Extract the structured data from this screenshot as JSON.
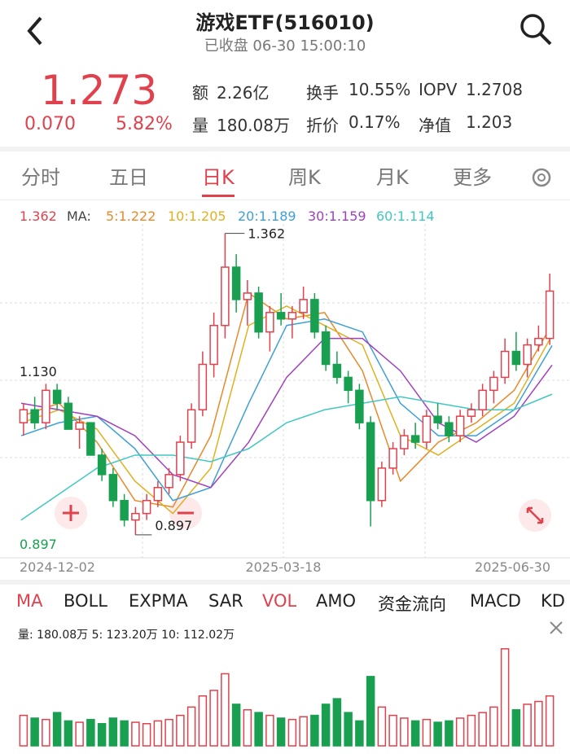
{
  "header": {
    "title": "游戏ETF(516010)",
    "status": "已收盘 06-30 15:00:10"
  },
  "quote": {
    "price": "1.273",
    "change": "0.070",
    "percent": "5.82%",
    "stats": [
      [
        "额",
        "2.26亿"
      ],
      [
        "换手",
        "10.55%"
      ],
      [
        "IOPV",
        "1.2708"
      ],
      [
        "量",
        "180.08万"
      ],
      [
        "折价",
        "0.17%"
      ],
      [
        "净值",
        "1.203"
      ]
    ]
  },
  "tabs": [
    "分时",
    "五日",
    "日K",
    "周K",
    "月K",
    "更多"
  ],
  "ma_legend": [
    "1.362",
    "MA:",
    "5:1.222",
    "10:1.205",
    "20:1.189",
    "30:1.159",
    "60:1.114"
  ],
  "indicators": [
    "MA",
    "BOLL",
    "EXPMA",
    "SAR",
    "VOL",
    "AMO",
    "资金流向",
    "MACD",
    "KD"
  ],
  "volume_legend": "量:  180.08万  5:  123.20万  10:  112.02万",
  "chart_data": {
    "type": "candlestick",
    "x_labels": [
      "2024-12-02",
      "2025-03-18",
      "2025-06-30"
    ],
    "annotations": {
      "high": "1.362",
      "left_high": "1.130",
      "low": "0.897",
      "axis_low": "0.897"
    },
    "ylim": [
      0.868,
      1.398
    ],
    "up_color": "#e0424d",
    "down_color": "#18a050",
    "ohlc": [
      [
        1.07,
        1.1,
        1.05,
        1.09
      ],
      [
        1.09,
        1.11,
        1.06,
        1.07
      ],
      [
        1.07,
        1.13,
        1.06,
        1.12
      ],
      [
        1.12,
        1.13,
        1.09,
        1.1
      ],
      [
        1.1,
        1.11,
        1.06,
        1.06
      ],
      [
        1.06,
        1.08,
        1.03,
        1.07
      ],
      [
        1.07,
        1.07,
        1.02,
        1.02
      ],
      [
        1.02,
        1.03,
        0.98,
        0.99
      ],
      [
        0.99,
        1.0,
        0.94,
        0.95
      ],
      [
        0.95,
        0.96,
        0.91,
        0.92
      ],
      [
        0.92,
        0.94,
        0.897,
        0.93
      ],
      [
        0.93,
        0.96,
        0.92,
        0.95
      ],
      [
        0.95,
        0.98,
        0.94,
        0.97
      ],
      [
        0.97,
        1.0,
        0.96,
        0.99
      ],
      [
        0.99,
        1.05,
        0.98,
        1.04
      ],
      [
        1.04,
        1.1,
        1.03,
        1.09
      ],
      [
        1.09,
        1.18,
        1.08,
        1.16
      ],
      [
        1.16,
        1.24,
        1.14,
        1.22
      ],
      [
        1.22,
        1.362,
        1.2,
        1.31
      ],
      [
        1.31,
        1.33,
        1.24,
        1.26
      ],
      [
        1.26,
        1.29,
        1.22,
        1.27
      ],
      [
        1.27,
        1.28,
        1.2,
        1.21
      ],
      [
        1.21,
        1.25,
        1.18,
        1.24
      ],
      [
        1.24,
        1.27,
        1.22,
        1.23
      ],
      [
        1.23,
        1.25,
        1.2,
        1.24
      ],
      [
        1.24,
        1.28,
        1.23,
        1.26
      ],
      [
        1.26,
        1.27,
        1.2,
        1.21
      ],
      [
        1.21,
        1.22,
        1.15,
        1.16
      ],
      [
        1.16,
        1.18,
        1.13,
        1.14
      ],
      [
        1.14,
        1.15,
        1.1,
        1.12
      ],
      [
        1.12,
        1.13,
        1.06,
        1.07
      ],
      [
        1.07,
        1.08,
        0.91,
        0.95
      ],
      [
        0.95,
        1.01,
        0.94,
        1.0
      ],
      [
        1.0,
        1.04,
        0.99,
        1.03
      ],
      [
        1.03,
        1.06,
        1.02,
        1.05
      ],
      [
        1.05,
        1.07,
        1.03,
        1.04
      ],
      [
        1.04,
        1.09,
        1.03,
        1.08
      ],
      [
        1.08,
        1.1,
        1.06,
        1.07
      ],
      [
        1.07,
        1.08,
        1.04,
        1.05
      ],
      [
        1.05,
        1.09,
        1.04,
        1.08
      ],
      [
        1.08,
        1.1,
        1.07,
        1.09
      ],
      [
        1.09,
        1.13,
        1.08,
        1.12
      ],
      [
        1.12,
        1.15,
        1.1,
        1.14
      ],
      [
        1.14,
        1.2,
        1.13,
        1.18
      ],
      [
        1.18,
        1.21,
        1.15,
        1.16
      ],
      [
        1.16,
        1.2,
        1.14,
        1.19
      ],
      [
        1.19,
        1.22,
        1.18,
        1.2
      ],
      [
        1.2,
        1.3,
        1.19,
        1.273
      ]
    ],
    "ma_series": [
      {
        "name": "MA5",
        "color": "#e8892b",
        "values": [
          1.08,
          1.1,
          1.04,
          0.95,
          0.94,
          1.05,
          1.27,
          1.23,
          1.24,
          1.15,
          0.98,
          1.04,
          1.07,
          1.12,
          1.222
        ]
      },
      {
        "name": "MA10",
        "color": "#e0b020",
        "values": [
          1.07,
          1.09,
          1.06,
          0.98,
          0.93,
          1.0,
          1.22,
          1.25,
          1.22,
          1.19,
          1.05,
          1.02,
          1.06,
          1.1,
          1.205
        ]
      },
      {
        "name": "MA20",
        "color": "#3da0d8",
        "values": [
          1.05,
          1.07,
          1.08,
          1.03,
          0.95,
          0.97,
          1.1,
          1.22,
          1.23,
          1.21,
          1.1,
          1.05,
          1.05,
          1.09,
          1.189
        ]
      },
      {
        "name": "MA30",
        "color": "#a040c0",
        "values": [
          1.1,
          1.09,
          1.08,
          1.05,
          0.99,
          0.97,
          1.04,
          1.14,
          1.2,
          1.2,
          1.15,
          1.07,
          1.04,
          1.08,
          1.159
        ]
      },
      {
        "name": "MA60",
        "color": "#40c8c0",
        "values": [
          0.92,
          0.96,
          1.0,
          1.02,
          1.02,
          1.01,
          1.03,
          1.07,
          1.09,
          1.1,
          1.11,
          1.1,
          1.09,
          1.09,
          1.114
        ]
      }
    ],
    "volume": [
      110,
      100,
      95,
      120,
      90,
      85,
      95,
      80,
      100,
      90,
      85,
      80,
      90,
      95,
      110,
      140,
      180,
      200,
      260,
      150,
      130,
      120,
      110,
      100,
      95,
      105,
      110,
      150,
      170,
      120,
      90,
      250,
      140,
      110,
      100,
      90,
      95,
      85,
      90,
      100,
      110,
      120,
      140,
      350,
      130,
      150,
      160,
      180.08
    ],
    "volume_ylim": [
      0,
      370
    ]
  }
}
